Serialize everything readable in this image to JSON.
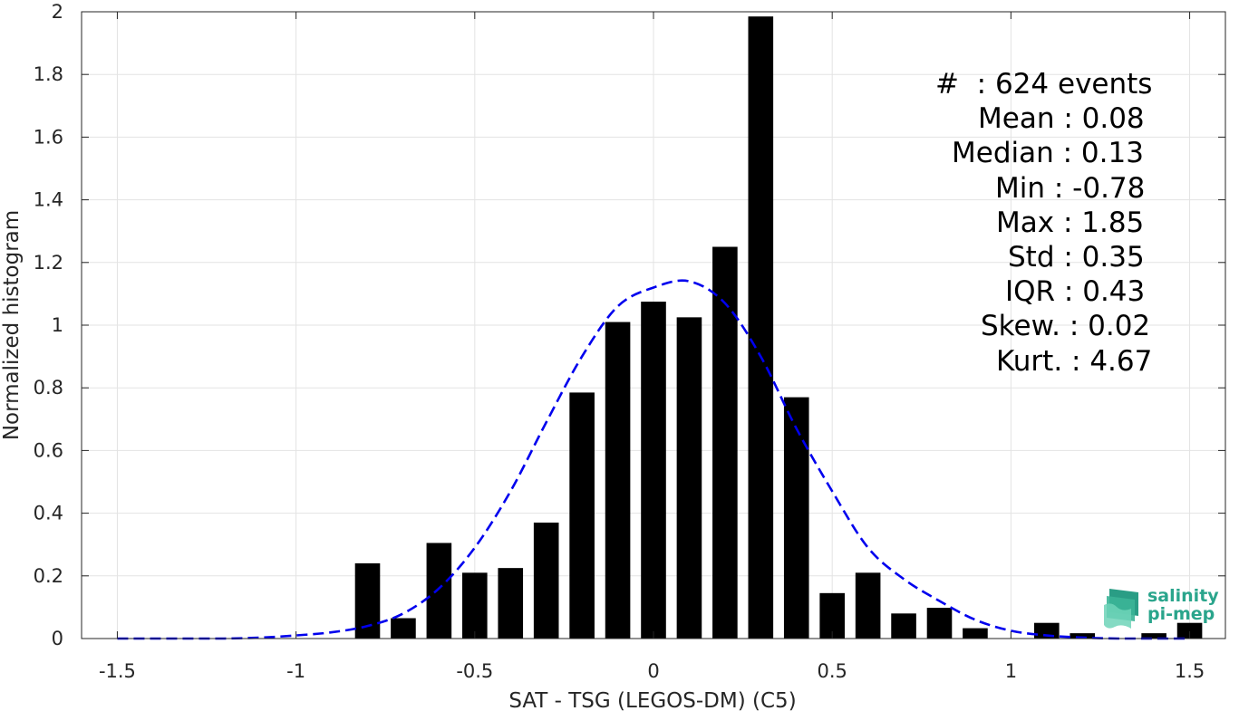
{
  "chart_data": {
    "type": "bar",
    "xlabel": "SAT - TSG (LEGOS-DM) (C5)",
    "ylabel": "Normalized histogram",
    "xlim": [
      -1.6,
      1.6
    ],
    "ylim": [
      0,
      2
    ],
    "xticks": [
      -1.5,
      -1,
      -0.5,
      0,
      0.5,
      1,
      1.5
    ],
    "xtick_labels": [
      "-1.5",
      "-1",
      "-0.5",
      "0",
      "0.5",
      "1",
      "1.5"
    ],
    "yticks": [
      0,
      0.2,
      0.4,
      0.6,
      0.8,
      1,
      1.2,
      1.4,
      1.6,
      1.8,
      2
    ],
    "ytick_labels": [
      "0",
      "0.2",
      "0.4",
      "0.6",
      "0.8",
      "1",
      "1.2",
      "1.4",
      "1.6",
      "1.8",
      "2"
    ],
    "grid": true,
    "bar_color": "#000000",
    "bar_width": 0.07,
    "bars": [
      {
        "x": -0.8,
        "y": 0.24
      },
      {
        "x": -0.7,
        "y": 0.065
      },
      {
        "x": -0.6,
        "y": 0.305
      },
      {
        "x": -0.5,
        "y": 0.21
      },
      {
        "x": -0.4,
        "y": 0.225
      },
      {
        "x": -0.3,
        "y": 0.37
      },
      {
        "x": -0.2,
        "y": 0.785
      },
      {
        "x": -0.1,
        "y": 1.01
      },
      {
        "x": 0.0,
        "y": 1.075
      },
      {
        "x": 0.1,
        "y": 1.025
      },
      {
        "x": 0.2,
        "y": 1.25
      },
      {
        "x": 0.3,
        "y": 1.985
      },
      {
        "x": 0.4,
        "y": 0.77
      },
      {
        "x": 0.5,
        "y": 0.145
      },
      {
        "x": 0.6,
        "y": 0.21
      },
      {
        "x": 0.7,
        "y": 0.08
      },
      {
        "x": 0.8,
        "y": 0.098
      },
      {
        "x": 0.9,
        "y": 0.033
      },
      {
        "x": 1.1,
        "y": 0.05
      },
      {
        "x": 1.2,
        "y": 0.017
      },
      {
        "x": 1.4,
        "y": 0.017
      },
      {
        "x": 1.5,
        "y": 0.05
      }
    ],
    "fit_curve": {
      "style": "dashed",
      "color": "#0000ee",
      "x": [
        -1.5,
        -1.4,
        -1.3,
        -1.2,
        -1.1,
        -1.0,
        -0.9,
        -0.8,
        -0.7,
        -0.6,
        -0.5,
        -0.4,
        -0.3,
        -0.2,
        -0.1,
        0.0,
        0.1,
        0.2,
        0.3,
        0.4,
        0.5,
        0.6,
        0.7,
        0.8,
        0.9,
        1.0,
        1.1,
        1.2,
        1.3,
        1.4,
        1.5
      ],
      "y": [
        0.0,
        0.0,
        0.0,
        0.0,
        0.003,
        0.01,
        0.02,
        0.04,
        0.08,
        0.16,
        0.29,
        0.47,
        0.69,
        0.9,
        1.06,
        1.12,
        1.14,
        1.07,
        0.9,
        0.67,
        0.47,
        0.29,
        0.19,
        0.12,
        0.06,
        0.025,
        0.01,
        0.003,
        0.0,
        0.0,
        0.0
      ]
    }
  },
  "stats": [
    "#  : 624 events",
    "Mean : 0.08",
    "Median : 0.13",
    "Min : -0.78",
    "Max : 1.85",
    "Std : 0.35",
    "IQR : 0.43",
    "Skew. : 0.02",
    "Kurt. : 4.67"
  ],
  "logo": {
    "line1": "salinity",
    "line2": "pi-mep",
    "color": "#2aa58c"
  }
}
